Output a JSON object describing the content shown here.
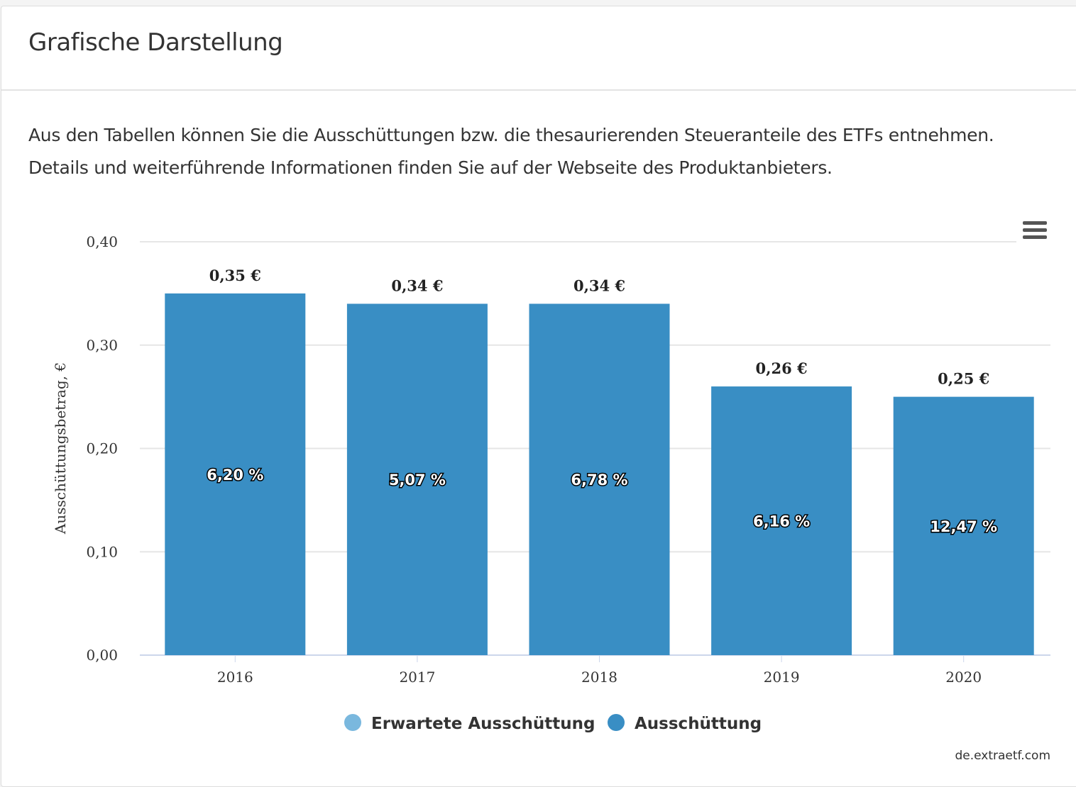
{
  "header": {
    "title": "Grafische Darstellung"
  },
  "description": {
    "line1": "Aus den Tabellen können Sie die Ausschüttungen bzw. die thesaurierenden Steueranteile des ETFs entnehmen.",
    "line2": "Details und weiterführende Informationen finden Sie auf der Webseite des Produktanbieters."
  },
  "menu_icon": "hamburger-menu-icon",
  "chart_data": {
    "type": "bar",
    "categories": [
      "2016",
      "2017",
      "2018",
      "2019",
      "2020"
    ],
    "series": [
      {
        "name": "Ausschüttung",
        "values": [
          0.35,
          0.34,
          0.34,
          0.26,
          0.25
        ],
        "color": "#398ec4",
        "data_labels": [
          "0,35 €",
          "0,34 €",
          "0,34 €",
          "0,26 €",
          "0,25 €"
        ],
        "inner_labels": [
          "6,20 %",
          "5,07 %",
          "6,78 %",
          "6,16 %",
          "12,47 %"
        ]
      }
    ],
    "legend": [
      {
        "name": "Erwartete Ausschüttung",
        "color": "#7ab8de"
      },
      {
        "name": "Ausschüttung",
        "color": "#398ec4"
      }
    ],
    "legend_position": "bottom-center",
    "ylabel": "Ausschüttungsbetrag, €",
    "ylim": [
      0,
      0.4
    ],
    "yticks": [
      "0,00",
      "0,10",
      "0,20",
      "0,30",
      "0,40"
    ],
    "grid": true,
    "credit": "de.extraetf.com"
  }
}
